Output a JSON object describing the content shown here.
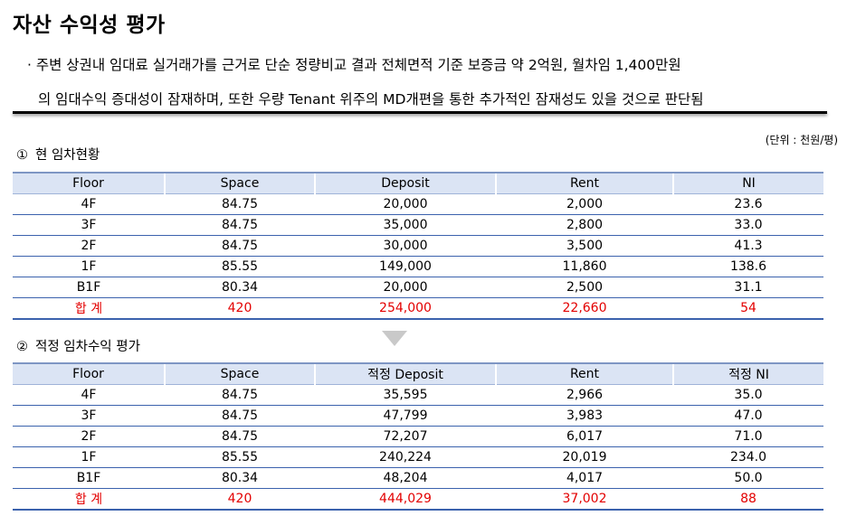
{
  "title": "자산 수익성 평가",
  "bullet_line1": "· 주변 상권내 임대료 실거래가를 근거로 단순 정량비교 결과 전체면적 기준 보증금 약 2억원, 월차임 1,400만원",
  "bullet_line2": "의 임대수익 증대성이 잠재하며, 또한 우량 Tenant 위주의 MD개편을 통한 추가적인 잠재성도 있을 것으로 판단됨",
  "unit_note": "(단위 : 천원/평)",
  "section1": {
    "num": "①",
    "label": "현 임차현황"
  },
  "section2": {
    "num": "②",
    "label": "적정 임차수익 평가"
  },
  "table1": {
    "headers": [
      "Floor",
      "Space",
      "Deposit",
      "Rent",
      "NI"
    ],
    "rows": [
      [
        "4F",
        "84.75",
        "20,000",
        "2,000",
        "23.6"
      ],
      [
        "3F",
        "84.75",
        "35,000",
        "2,800",
        "33.0"
      ],
      [
        "2F",
        "84.75",
        "30,000",
        "3,500",
        "41.3"
      ],
      [
        "1F",
        "85.55",
        "149,000",
        "11,860",
        "138.6"
      ],
      [
        "B1F",
        "80.34",
        "20,000",
        "2,500",
        "31.1"
      ]
    ],
    "total": [
      "합 계",
      "420",
      "254,000",
      "22,660",
      "54"
    ]
  },
  "table2": {
    "headers": [
      "Floor",
      "Space",
      "적정 Deposit",
      "Rent",
      "적정 NI"
    ],
    "rows": [
      [
        "4F",
        "84.75",
        "35,595",
        "2,966",
        "35.0"
      ],
      [
        "3F",
        "84.75",
        "47,799",
        "3,983",
        "47.0"
      ],
      [
        "2F",
        "84.75",
        "72,207",
        "6,017",
        "71.0"
      ],
      [
        "1F",
        "85.55",
        "240,224",
        "20,019",
        "234.0"
      ],
      [
        "B1F",
        "80.34",
        "48,204",
        "4,017",
        "50.0"
      ]
    ],
    "total": [
      "합 계",
      "420",
      "444,029",
      "37,002",
      "88"
    ]
  },
  "colors": {
    "header_bg": "#dbe4f4",
    "row_border": "#3b62ad",
    "total_text": "#e30000",
    "arrow": "#c9c9c9"
  }
}
